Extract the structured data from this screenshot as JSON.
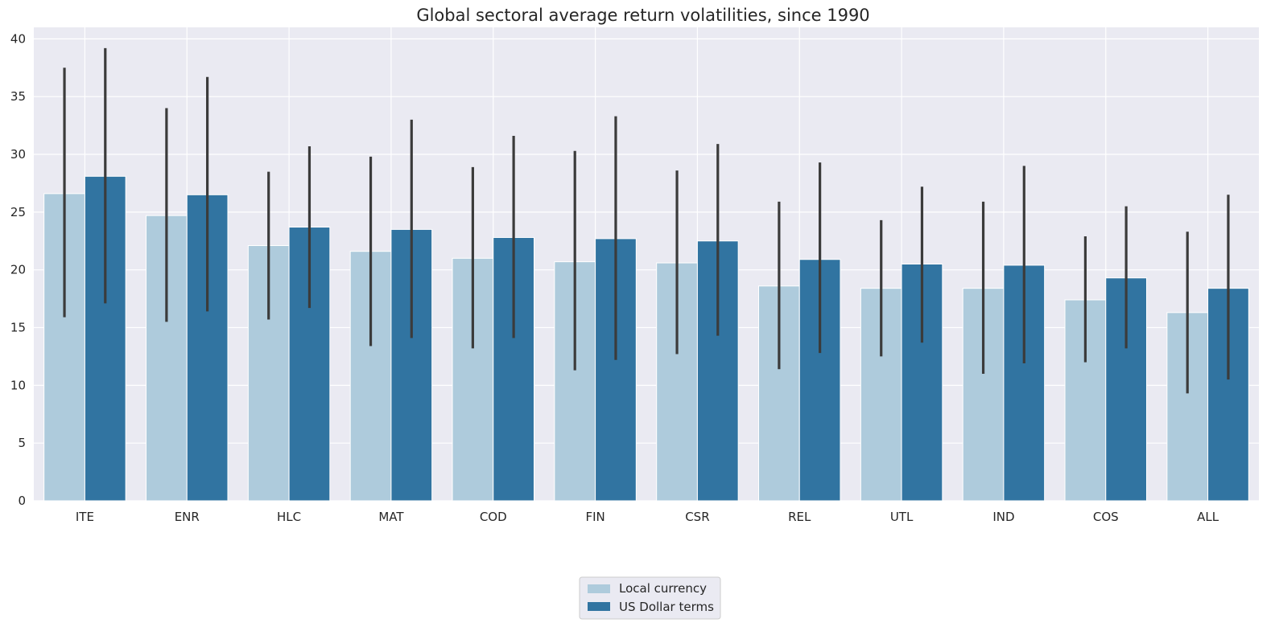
{
  "chart_data": {
    "type": "bar",
    "title": "Global sectoral average return volatilities, since 1990",
    "xlabel": "",
    "ylabel": "",
    "categories": [
      "ITE",
      "ENR",
      "HLC",
      "MAT",
      "COD",
      "FIN",
      "CSR",
      "REL",
      "UTL",
      "IND",
      "COS",
      "ALL"
    ],
    "yticks": [
      0,
      5,
      10,
      15,
      20,
      25,
      30,
      35,
      40
    ],
    "ylim": [
      0,
      41
    ],
    "grid": true,
    "legend_position": "bottom-center",
    "series": [
      {
        "name": "Local currency",
        "color": "#aecbdc",
        "values": [
          26.6,
          24.7,
          22.1,
          21.6,
          21.0,
          20.7,
          20.6,
          18.6,
          18.4,
          18.4,
          17.4,
          16.3
        ],
        "error_low": [
          15.9,
          15.5,
          15.7,
          13.4,
          13.2,
          11.3,
          12.7,
          11.4,
          12.5,
          11.0,
          12.0,
          9.3
        ],
        "error_high": [
          37.5,
          34.0,
          28.5,
          29.8,
          28.9,
          30.3,
          28.6,
          25.9,
          24.3,
          25.9,
          22.9,
          23.3
        ]
      },
      {
        "name": "US Dollar terms",
        "color": "#3174a1",
        "values": [
          28.1,
          26.5,
          23.7,
          23.5,
          22.8,
          22.7,
          22.5,
          20.9,
          20.5,
          20.4,
          19.3,
          18.4
        ],
        "error_low": [
          17.1,
          16.4,
          16.7,
          14.1,
          14.1,
          12.2,
          14.3,
          12.8,
          13.7,
          11.9,
          13.2,
          10.5
        ],
        "error_high": [
          39.2,
          36.7,
          30.7,
          33.0,
          31.6,
          33.3,
          30.9,
          29.3,
          27.2,
          29.0,
          25.5,
          26.5
        ]
      }
    ]
  }
}
